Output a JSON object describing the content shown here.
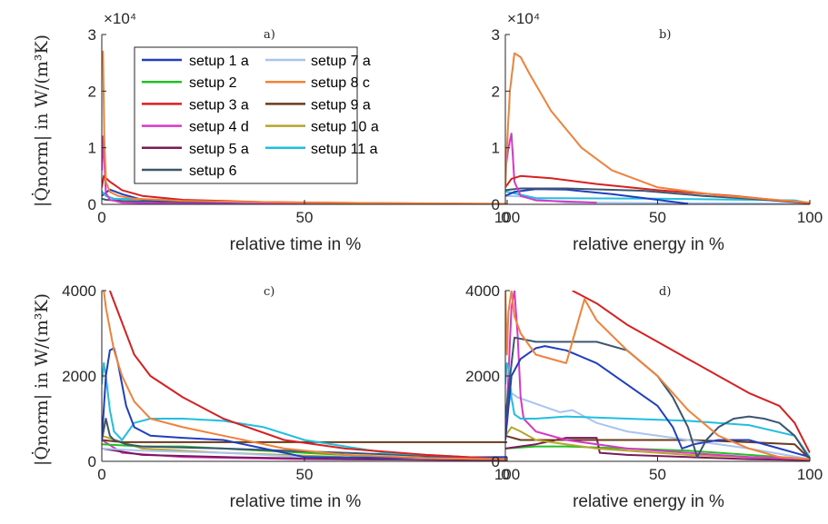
{
  "figure": {
    "ylabel_top": "|Q̇norm| in W/(m³K)",
    "ylabel_bottom": "|Q̇norm| in W/(m³K)"
  },
  "colors": {
    "setup 1 a": "#1f3fbf",
    "setup 2": "#22c022",
    "setup 3 a": "#d92020",
    "setup 4 d": "#d838c8",
    "setup 5 a": "#7a1a5a",
    "setup 6": "#3c5670",
    "setup 7 a": "#a8c4ef",
    "setup 8 c": "#f0823a",
    "setup 9 a": "#6b3b1a",
    "setup 10 a": "#b5a52a",
    "setup 11 a": "#20bfe0"
  },
  "legend": {
    "col1": [
      "setup 1 a",
      "setup 2",
      "setup 3 a",
      "setup 4 d",
      "setup 5 a",
      "setup 6"
    ],
    "col2": [
      "setup 7 a",
      "setup 8 c",
      "setup 9 a",
      "setup 10 a",
      "setup 11 a"
    ]
  },
  "chart_data": [
    {
      "panel": "a)",
      "type": "line",
      "xlabel": "relative time in %",
      "xlim": [
        0,
        100
      ],
      "ylim": [
        0,
        30000
      ],
      "xticks": [
        "0",
        "50",
        "100"
      ],
      "yticks": [
        "0",
        "1",
        "2",
        "3"
      ],
      "multiplier": "×10⁴",
      "legend_position": "top",
      "series": [
        {
          "name": "setup 8 c",
          "x": [
            0,
            0.3,
            0.6,
            1,
            2,
            4,
            8,
            20,
            50,
            100
          ],
          "y": [
            27000,
            27000,
            12000,
            4000,
            2200,
            1500,
            1000,
            600,
            300,
            100
          ]
        },
        {
          "name": "setup 3 a",
          "x": [
            0,
            0.5,
            2,
            5,
            10,
            20,
            40,
            70,
            100
          ],
          "y": [
            3000,
            5000,
            4000,
            2500,
            1500,
            800,
            400,
            200,
            50
          ]
        },
        {
          "name": "setup 4 d",
          "x": [
            0,
            0.3,
            1,
            2,
            5,
            20,
            100
          ],
          "y": [
            6000,
            12000,
            2000,
            800,
            300,
            100,
            50
          ]
        },
        {
          "name": "setup 11 a",
          "x": [
            0,
            1,
            3,
            10,
            30,
            50,
            100
          ],
          "y": [
            2300,
            1500,
            1000,
            900,
            500,
            200,
            50
          ]
        },
        {
          "name": "setup 1 a",
          "x": [
            0,
            2,
            5,
            10,
            30,
            60,
            100
          ],
          "y": [
            1500,
            2600,
            1800,
            800,
            300,
            100,
            50
          ]
        },
        {
          "name": "setup 6",
          "x": [
            0,
            1,
            5,
            20,
            60,
            100
          ],
          "y": [
            1000,
            800,
            600,
            400,
            200,
            50
          ]
        }
      ]
    },
    {
      "panel": "b)",
      "type": "line",
      "xlabel": "relative energy in %",
      "xlim": [
        0,
        100
      ],
      "ylim": [
        0,
        30000
      ],
      "xticks": [
        "0",
        "50",
        "100"
      ],
      "yticks": [
        "0",
        "1",
        "2",
        "3"
      ],
      "multiplier": "×10⁴",
      "series": [
        {
          "name": "setup 8 c",
          "x": [
            0,
            0.5,
            1.5,
            3,
            5,
            8,
            15,
            25,
            35,
            50,
            70,
            100
          ],
          "y": [
            3000,
            10000,
            20000,
            26700,
            26000,
            23000,
            16500,
            10000,
            6000,
            3000,
            1600,
            300
          ]
        },
        {
          "name": "setup 3 a",
          "x": [
            0,
            2,
            5,
            15,
            30,
            50,
            75,
            100
          ],
          "y": [
            3000,
            4500,
            5000,
            4600,
            3600,
            2500,
            1500,
            200
          ]
        },
        {
          "name": "setup 4 d",
          "x": [
            0,
            1,
            2,
            3,
            5,
            10,
            30
          ],
          "y": [
            6000,
            10000,
            12500,
            4000,
            1500,
            700,
            300
          ]
        },
        {
          "name": "setup 6",
          "x": [
            0,
            5,
            20,
            45,
            65,
            80,
            100
          ],
          "y": [
            2500,
            2800,
            2800,
            2400,
            1500,
            1000,
            200
          ]
        },
        {
          "name": "setup 1 a",
          "x": [
            0,
            3,
            10,
            20,
            35,
            50,
            60
          ],
          "y": [
            1500,
            2200,
            2700,
            2600,
            1800,
            800,
            100
          ]
        },
        {
          "name": "setup 11 a",
          "x": [
            0,
            10,
            50,
            95,
            100
          ],
          "y": [
            2300,
            1100,
            1000,
            700,
            200
          ]
        },
        {
          "name": "setup 7 a",
          "x": [
            0,
            5,
            10,
            20,
            100
          ],
          "y": [
            1500,
            1400,
            900,
            300,
            100
          ]
        }
      ]
    },
    {
      "panel": "c)",
      "type": "line",
      "xlabel": "relative time in %",
      "xlim": [
        0,
        100
      ],
      "ylim": [
        0,
        4000
      ],
      "xticks": [
        "0",
        "50",
        "100"
      ],
      "yticks": [
        "0",
        "2000",
        "4000"
      ],
      "series": [
        {
          "name": "setup 8 c",
          "x": [
            0.5,
            1,
            3,
            5,
            8,
            12,
            20,
            30,
            45,
            60,
            80,
            100
          ],
          "y": [
            4000,
            3600,
            2600,
            2000,
            1400,
            1000,
            800,
            600,
            300,
            150,
            80,
            50
          ]
        },
        {
          "name": "setup 3 a",
          "x": [
            2,
            4,
            8,
            12,
            20,
            30,
            45,
            60,
            80,
            100
          ],
          "y": [
            4000,
            3500,
            2500,
            2000,
            1500,
            1000,
            500,
            300,
            150,
            50
          ]
        },
        {
          "name": "setup 1 a",
          "x": [
            0,
            1,
            2,
            3,
            4,
            6,
            8,
            12,
            20,
            30,
            40,
            50,
            70,
            100
          ],
          "y": [
            500,
            2000,
            2600,
            2650,
            2300,
            1300,
            800,
            600,
            550,
            500,
            300,
            100,
            80,
            100
          ]
        },
        {
          "name": "setup 11 a",
          "x": [
            0,
            0.5,
            1,
            2,
            3,
            5,
            8,
            12,
            20,
            30,
            40,
            50,
            70,
            100
          ],
          "y": [
            1800,
            2300,
            2000,
            1200,
            700,
            500,
            900,
            1000,
            1000,
            950,
            800,
            500,
            200,
            50
          ]
        },
        {
          "name": "setup 6",
          "x": [
            0,
            1,
            2,
            3,
            6,
            10,
            30,
            60,
            100
          ],
          "y": [
            500,
            1000,
            600,
            500,
            400,
            350,
            300,
            200,
            50
          ]
        },
        {
          "name": "setup 9 a",
          "x": [
            0,
            5,
            20,
            40,
            60,
            80,
            100
          ],
          "y": [
            500,
            450,
            450,
            450,
            450,
            450,
            450
          ]
        },
        {
          "name": "setup 2",
          "x": [
            0,
            10,
            20,
            30,
            50,
            70,
            100
          ],
          "y": [
            400,
            350,
            350,
            300,
            200,
            100,
            50
          ]
        },
        {
          "name": "setup 7 a",
          "x": [
            0,
            10,
            30,
            50,
            100
          ],
          "y": [
            300,
            250,
            200,
            100,
            50
          ]
        },
        {
          "name": "setup 10 a",
          "x": [
            0,
            10,
            30,
            60,
            100
          ],
          "y": [
            600,
            300,
            200,
            100,
            50
          ]
        },
        {
          "name": "setup 5 a",
          "x": [
            0,
            10,
            30,
            60,
            100
          ],
          "y": [
            300,
            150,
            100,
            50,
            30
          ]
        },
        {
          "name": "setup 4 d",
          "x": [
            0,
            5,
            20,
            50,
            100
          ],
          "y": [
            500,
            200,
            100,
            50,
            30
          ]
        }
      ]
    },
    {
      "panel": "d)",
      "type": "line",
      "xlabel": "relative energy in %",
      "xlim": [
        0,
        100
      ],
      "ylim": [
        0,
        4000
      ],
      "xticks": [
        "0",
        "50",
        "100"
      ],
      "yticks": [
        "0",
        "2000",
        "4000"
      ],
      "series": [
        {
          "name": "setup 3 a",
          "x": [
            22,
            30,
            40,
            50,
            60,
            70,
            80,
            90,
            95,
            100
          ],
          "y": [
            4000,
            3700,
            3200,
            2800,
            2400,
            2000,
            1600,
            1300,
            900,
            200
          ]
        },
        {
          "name": "setup 8 c",
          "x": [
            0,
            0.5,
            1,
            2,
            3,
            5,
            10,
            20,
            26,
            30,
            40,
            50,
            60,
            70,
            80,
            90,
            100
          ],
          "y": [
            4000,
            2500,
            3500,
            4000,
            3400,
            3000,
            2500,
            2300,
            3800,
            3300,
            2600,
            2000,
            1200,
            600,
            300,
            100,
            50
          ]
        },
        {
          "name": "setup 6",
          "x": [
            0,
            3,
            10,
            20,
            30,
            40,
            50,
            55,
            60,
            63,
            66,
            70,
            75,
            80,
            85,
            90,
            95,
            100
          ],
          "y": [
            1000,
            2900,
            2800,
            2800,
            2800,
            2600,
            2000,
            1500,
            800,
            100,
            500,
            800,
            1000,
            1050,
            1000,
            900,
            600,
            50
          ]
        },
        {
          "name": "setup 1 a",
          "x": [
            0,
            2,
            5,
            10,
            13,
            20,
            30,
            40,
            50,
            55,
            58,
            62,
            70,
            80,
            90,
            100
          ],
          "y": [
            500,
            2000,
            2400,
            2650,
            2700,
            2600,
            2300,
            1800,
            1300,
            800,
            300,
            400,
            500,
            500,
            300,
            100
          ]
        },
        {
          "name": "setup 11 a",
          "x": [
            0,
            0.5,
            1,
            2,
            3,
            5,
            10,
            20,
            40,
            60,
            80,
            95,
            100
          ],
          "y": [
            1800,
            2300,
            2200,
            1500,
            1100,
            1000,
            1000,
            1050,
            1000,
            950,
            850,
            600,
            100
          ]
        },
        {
          "name": "setup 4 d",
          "x": [
            0,
            1,
            2,
            3,
            4,
            5,
            6,
            10,
            20,
            40,
            60,
            80,
            100
          ],
          "y": [
            500,
            2000,
            3600,
            4000,
            3000,
            1500,
            1000,
            700,
            500,
            300,
            200,
            100,
            50
          ]
        },
        {
          "name": "setup 7 a",
          "x": [
            0,
            2,
            4,
            8,
            12,
            18,
            22,
            30,
            40,
            50,
            60,
            80,
            100
          ],
          "y": [
            1000,
            1600,
            1500,
            1400,
            1300,
            1150,
            1200,
            900,
            700,
            600,
            500,
            300,
            50
          ]
        },
        {
          "name": "setup 10 a",
          "x": [
            0,
            2,
            5,
            10,
            15,
            20,
            30,
            40,
            60,
            100
          ],
          "y": [
            600,
            800,
            700,
            500,
            450,
            400,
            300,
            250,
            150,
            50
          ]
        },
        {
          "name": "setup 9 a",
          "x": [
            0,
            5,
            20,
            40,
            60,
            80,
            95,
            100
          ],
          "y": [
            600,
            500,
            500,
            500,
            500,
            450,
            400,
            50
          ]
        },
        {
          "name": "setup 5 a",
          "x": [
            0,
            10,
            20,
            30,
            31,
            40,
            60,
            80,
            100
          ],
          "y": [
            300,
            400,
            550,
            550,
            200,
            150,
            100,
            50,
            30
          ]
        },
        {
          "name": "setup 2",
          "x": [
            0,
            10,
            20,
            40,
            60,
            80,
            100
          ],
          "y": [
            300,
            350,
            350,
            300,
            250,
            150,
            50
          ]
        }
      ]
    }
  ]
}
